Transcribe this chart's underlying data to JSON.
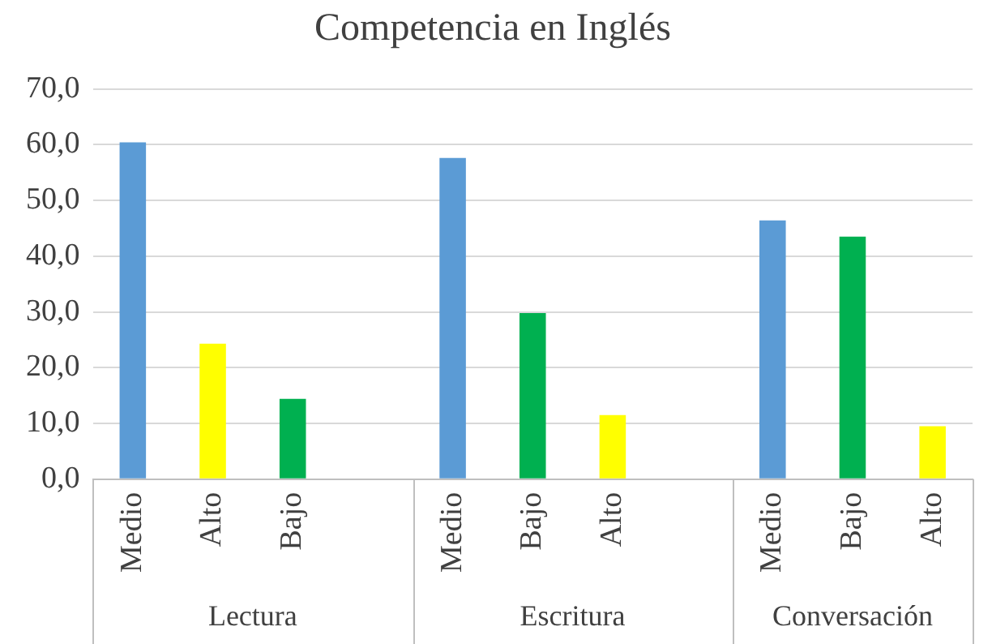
{
  "chart_data": {
    "type": "bar",
    "title": "Competencia en Inglés",
    "categories": [
      "Medio",
      "Alto",
      "Bajo",
      null,
      "Medio",
      "Bajo",
      "Alto",
      null,
      "Medio",
      "Bajo",
      "Alto"
    ],
    "values": [
      60.4,
      24.3,
      14.4,
      null,
      57.6,
      29.8,
      11.5,
      null,
      46.4,
      43.5,
      9.5
    ],
    "colors": [
      "#5b9bd5",
      "#ffff00",
      "#00b050",
      null,
      "#5b9bd5",
      "#00b050",
      "#ffff00",
      null,
      "#5b9bd5",
      "#00b050",
      "#ffff00"
    ],
    "ylim": [
      0,
      70
    ],
    "yticks": [
      {
        "value": 0,
        "label": "0,0"
      },
      {
        "value": 10,
        "label": "10,0"
      },
      {
        "value": 20,
        "label": "20,0"
      },
      {
        "value": 30,
        "label": "30,0"
      },
      {
        "value": 40,
        "label": "40,0"
      },
      {
        "value": 50,
        "label": "50,0"
      },
      {
        "value": 60,
        "label": "60,0"
      },
      {
        "value": 70,
        "label": "70,0"
      }
    ],
    "annotations": [
      "Lectura",
      "Escritura",
      "Conversación"
    ],
    "grid": "y",
    "legend": false
  }
}
